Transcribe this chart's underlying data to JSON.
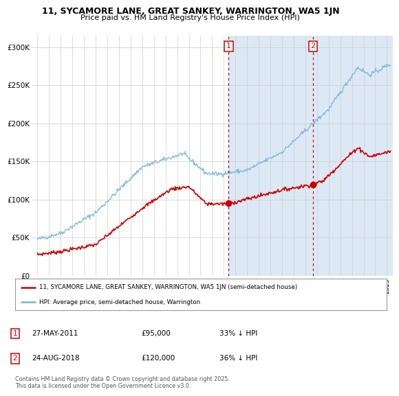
{
  "title1": "11, SYCAMORE LANE, GREAT SANKEY, WARRINGTON, WA5 1JN",
  "title2": "Price paid vs. HM Land Registry's House Price Index (HPI)",
  "bg_color": "#ffffff",
  "plot_bg": "#ffffff",
  "legend_line1": "11, SYCAMORE LANE, GREAT SANKEY, WARRINGTON, WA5 1JN (semi-detached house)",
  "legend_line2": "HPI: Average price, semi-detached house, Warrington",
  "footer": "Contains HM Land Registry data © Crown copyright and database right 2025.\nThis data is licensed under the Open Government Licence v3.0.",
  "hpi_color": "#7ab4d8",
  "price_color": "#cc0000",
  "vline_color": "#cc0000",
  "shade_color": "#dce9f5",
  "yticks": [
    0,
    50000,
    100000,
    150000,
    200000,
    250000,
    300000
  ],
  "ytick_labels": [
    "£0",
    "£50K",
    "£100K",
    "£150K",
    "£200K",
    "£250K",
    "£300K"
  ],
  "sale1_x": 2011.42,
  "sale2_x": 2018.65,
  "sale1_price": 95000,
  "sale2_price": 120000,
  "xmin": 1995.0,
  "xmax": 2025.5,
  "ymin": 0,
  "ymax": 315000
}
